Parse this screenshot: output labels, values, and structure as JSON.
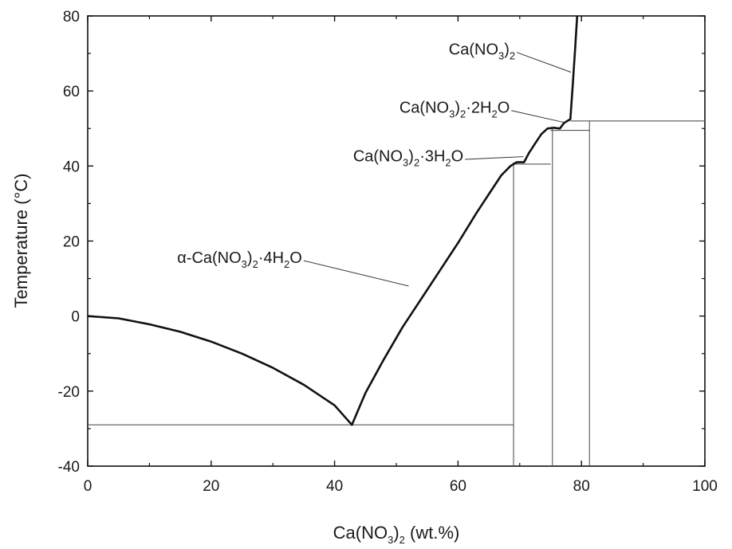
{
  "chart_data": {
    "type": "line",
    "title": "",
    "xlabel": {
      "pre": "Ca(NO",
      "sub": "3",
      "post": ")",
      "sub2": "2",
      "tail": " (wt.%)"
    },
    "ylabel": "Temperature (°C)",
    "xlim": [
      0,
      100
    ],
    "ylim": [
      -40,
      80
    ],
    "xticks": [
      0,
      20,
      40,
      60,
      80,
      100
    ],
    "yticks": [
      -40,
      -20,
      0,
      20,
      40,
      60,
      80
    ],
    "grid": false,
    "liquidus": [
      [
        0,
        0
      ],
      [
        5,
        -0.6
      ],
      [
        10,
        -2.2
      ],
      [
        15,
        -4.2
      ],
      [
        20,
        -6.8
      ],
      [
        25,
        -10
      ],
      [
        30,
        -13.8
      ],
      [
        35,
        -18.3
      ],
      [
        40,
        -23.8
      ],
      [
        42.8,
        -29
      ],
      [
        45,
        -20.5
      ],
      [
        48,
        -11.5
      ],
      [
        51,
        -3
      ],
      [
        54,
        4.5
      ],
      [
        57,
        12
      ],
      [
        60,
        19.5
      ],
      [
        63,
        27.5
      ],
      [
        65,
        32.5
      ],
      [
        67,
        37.5
      ],
      [
        68.5,
        40
      ],
      [
        69.5,
        41
      ],
      [
        70.7,
        41
      ],
      [
        71.5,
        43.5
      ],
      [
        72.5,
        46
      ],
      [
        73.5,
        48.5
      ],
      [
        74.5,
        50
      ],
      [
        75.5,
        50.2
      ],
      [
        76.5,
        50
      ],
      [
        77.2,
        51.5
      ],
      [
        78.2,
        52.5
      ],
      [
        78.6,
        62
      ],
      [
        79.0,
        72
      ],
      [
        79.3,
        80
      ]
    ],
    "isotherms": [
      {
        "x": [
          0,
          69
        ],
        "y": -29
      },
      {
        "x": [
          69,
          75
        ],
        "y": 40.5
      },
      {
        "x": [
          75,
          81.3
        ],
        "y": 49.5
      },
      {
        "x": [
          78.2,
          100
        ],
        "y": 52
      }
    ],
    "verticals": [
      {
        "x": 69,
        "y": [
          -40,
          41
        ]
      },
      {
        "x": 75.3,
        "y": [
          -40,
          50
        ]
      },
      {
        "x": 81.3,
        "y": [
          -40,
          52
        ]
      }
    ],
    "annotations": [
      {
        "parts": [
          [
            "α-Ca(NO",
            0
          ],
          [
            "3",
            1
          ],
          [
            ")",
            0
          ],
          [
            "2",
            1
          ],
          [
            "·4H",
            0
          ],
          [
            "2",
            1
          ],
          [
            "O",
            0
          ]
        ],
        "x": 14.5,
        "y": 14.2,
        "leader_to": [
          52,
          8
        ]
      },
      {
        "parts": [
          [
            "Ca(NO",
            0
          ],
          [
            "3",
            1
          ],
          [
            ")",
            0
          ],
          [
            "2",
            1
          ],
          [
            "·3H",
            0
          ],
          [
            "2",
            1
          ],
          [
            "O",
            0
          ]
        ],
        "x": 43,
        "y": 41.2,
        "leader_to": [
          70.6,
          42.5
        ]
      },
      {
        "parts": [
          [
            "Ca(NO",
            0
          ],
          [
            "3",
            1
          ],
          [
            ")",
            0
          ],
          [
            "2",
            1
          ],
          [
            "·2H",
            0
          ],
          [
            "2",
            1
          ],
          [
            "O",
            0
          ]
        ],
        "x": 50.5,
        "y": 54.2,
        "leader_to": [
          77.5,
          51.5
        ]
      },
      {
        "parts": [
          [
            "Ca(NO",
            0
          ],
          [
            "3",
            1
          ],
          [
            ")",
            0
          ],
          [
            "2",
            1
          ]
        ],
        "x": 58.5,
        "y": 69.7,
        "leader_to": [
          78.3,
          65
        ]
      }
    ]
  }
}
